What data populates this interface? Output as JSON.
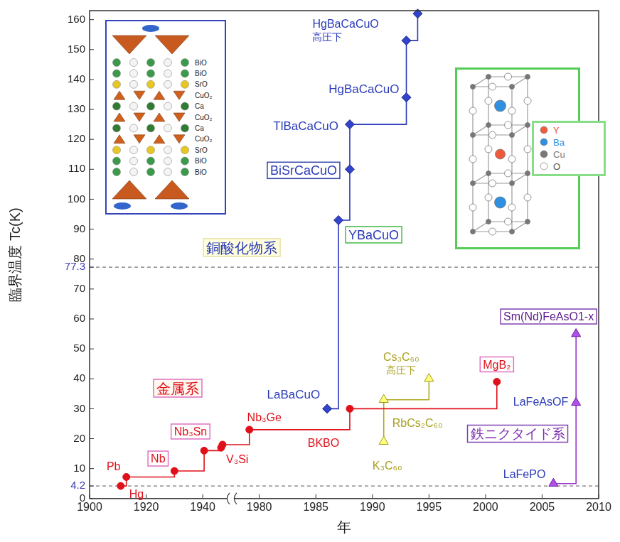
{
  "chart_data": {
    "type": "step",
    "x_label": "年",
    "y_label": "臨界温度 Tc(K)",
    "xlim": [
      1900,
      2010
    ],
    "xticks": [
      1900,
      1920,
      1940,
      1980,
      1985,
      1990,
      1995,
      2000,
      2005,
      2010
    ],
    "ylim": [
      0,
      163
    ],
    "yticks": [
      0,
      4.2,
      10,
      20,
      30,
      40,
      50,
      60,
      70,
      77.3,
      80,
      90,
      100,
      110,
      120,
      130,
      140,
      150,
      160
    ],
    "grid": false,
    "series": [
      {
        "name": "金属系",
        "color": "#e0101a",
        "marker": "circle",
        "line_style": "solid",
        "x": [
          1911,
          1913,
          1930,
          1941,
          1953,
          1954,
          1973,
          1988,
          2001
        ],
        "values": [
          4.2,
          7.2,
          9.2,
          16,
          17,
          18,
          23,
          30,
          39
        ],
        "labels": [
          "Hg",
          "Pb",
          "Nb",
          null,
          "V₃Si",
          "Nb₃Sn",
          "Nb₃Ge",
          "BKBO",
          "MgB₂"
        ]
      },
      {
        "name": "銅酸化物系",
        "color": "#2a3ab8",
        "marker": "diamond",
        "line_style": "solid",
        "x": [
          1986,
          1987,
          1988,
          1988,
          1993,
          1993,
          1994
        ],
        "values": [
          30,
          93,
          110,
          125,
          134,
          153,
          162
        ],
        "labels": [
          "LaBaCuO",
          "YBaCuO",
          "BiSrCaCuO",
          "TlBaCaCuO",
          "HgBaCaCuO",
          null,
          "HgBaCaCuO\n高圧下"
        ]
      },
      {
        "color": "#b0aa20",
        "marker": "triangle",
        "line_style": "solid",
        "x": [
          1991,
          1991,
          1995
        ],
        "values": [
          19,
          33,
          40
        ],
        "labels": [
          "K₃C₆₀",
          "RbCs₂C₆₀",
          "Cs₃C₆₀\n高圧下"
        ]
      },
      {
        "name": "鉄ニクタイド系",
        "color": "#9933cc",
        "marker": "triangle",
        "line_style": "solid",
        "x": [
          2006,
          2008,
          2008
        ],
        "values": [
          5,
          32,
          55
        ],
        "labels": [
          "LaFePO",
          "LaFeAsOF",
          "Sm(Nd)FeAsO1-x"
        ]
      }
    ]
  },
  "insets": [
    {
      "layers": [
        {
          "label": "BiO",
          "color": "#3a9a4a",
          "marker": "sphere"
        },
        {
          "label": "BiO",
          "color": "#3a9a4a",
          "marker": "sphere"
        },
        {
          "label": "SrO",
          "color": "#e8c820",
          "marker": "sphere"
        },
        {
          "label": "CuO₂",
          "color": "#d0601e",
          "marker": "pyramid"
        },
        {
          "label": "Ca",
          "color": "#2e7d32",
          "marker": "sphere"
        },
        {
          "label": "CuO₂",
          "color": "#d0601e",
          "marker": "pyramid"
        },
        {
          "label": "Ca",
          "color": "#2e7d32",
          "marker": "sphere"
        },
        {
          "label": "CuO₂",
          "color": "#d0601e",
          "marker": "pyramid"
        },
        {
          "label": "SrO",
          "color": "#e8c820",
          "marker": "sphere"
        },
        {
          "label": "BiO",
          "color": "#3a9a4a",
          "marker": "sphere"
        },
        {
          "label": "BiO",
          "color": "#3a9a4a",
          "marker": "sphere"
        }
      ]
    },
    {
      "legend": [
        {
          "label": "Y",
          "color": "#f05a3c"
        },
        {
          "label": "Ba",
          "color": "#2f8fe0"
        },
        {
          "label": "Cu",
          "color": "#777777"
        },
        {
          "label": "O",
          "color": "#ffffff"
        }
      ]
    }
  ]
}
